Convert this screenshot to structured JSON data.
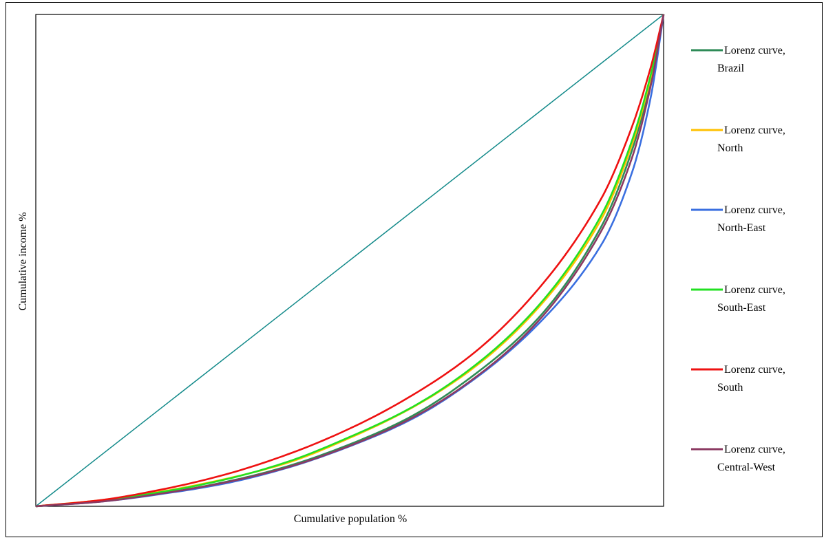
{
  "chart_data": {
    "type": "line",
    "title": "",
    "xlabel": "Cumulative population %",
    "ylabel": "Cumulative income %",
    "xlim": [
      0,
      100
    ],
    "ylim": [
      0,
      100
    ],
    "grid": false,
    "legend_position": "right",
    "x": [
      0,
      10,
      20,
      30,
      40,
      50,
      60,
      70,
      80,
      90,
      95,
      98,
      100
    ],
    "series": [
      {
        "name_lines": [
          "Lorenz curve,",
          "Brazil"
        ],
        "color": "#2e8b57",
        "values": [
          0,
          1.0,
          2.6,
          4.9,
          8.1,
          12.6,
          18.4,
          26.9,
          38.2,
          56.7,
          72.5,
          86.9,
          100
        ]
      },
      {
        "name_lines": [
          "Lorenz curve,",
          "North"
        ],
        "color": "#ffc000",
        "values": [
          0,
          1.2,
          3.0,
          5.5,
          8.8,
          13.9,
          20.1,
          28.4,
          40.3,
          58.2,
          73.7,
          87.5,
          100
        ]
      },
      {
        "name_lines": [
          "Lorenz curve,",
          "North-East"
        ],
        "color": "#3a6fe0",
        "values": [
          0,
          0.9,
          2.5,
          4.6,
          7.8,
          12.2,
          17.8,
          26.0,
          37.0,
          53.0,
          68.0,
          83.5,
          100
        ]
      },
      {
        "name_lines": [
          "Lorenz curve,",
          "South-East"
        ],
        "color": "#22e022",
        "values": [
          0,
          1.1,
          2.9,
          5.4,
          9.0,
          14.1,
          20.2,
          28.7,
          40.7,
          59.0,
          74.5,
          88.0,
          100
        ]
      },
      {
        "name_lines": [
          "Lorenz curve,",
          "South"
        ],
        "color": "#ee1111",
        "values": [
          0,
          1.2,
          3.4,
          6.4,
          10.5,
          15.8,
          22.6,
          31.4,
          44.1,
          62.4,
          77.3,
          89.5,
          100
        ]
      },
      {
        "name_lines": [
          "Lorenz curve,",
          "Central-West"
        ],
        "color": "#8b3a62",
        "values": [
          0,
          0.9,
          2.6,
          4.8,
          7.9,
          12.3,
          18.0,
          26.2,
          37.6,
          55.8,
          71.0,
          85.8,
          100
        ]
      }
    ],
    "equality_line": {
      "color": "#138a8a",
      "x": [
        0,
        100
      ],
      "values": [
        0,
        100
      ]
    }
  }
}
